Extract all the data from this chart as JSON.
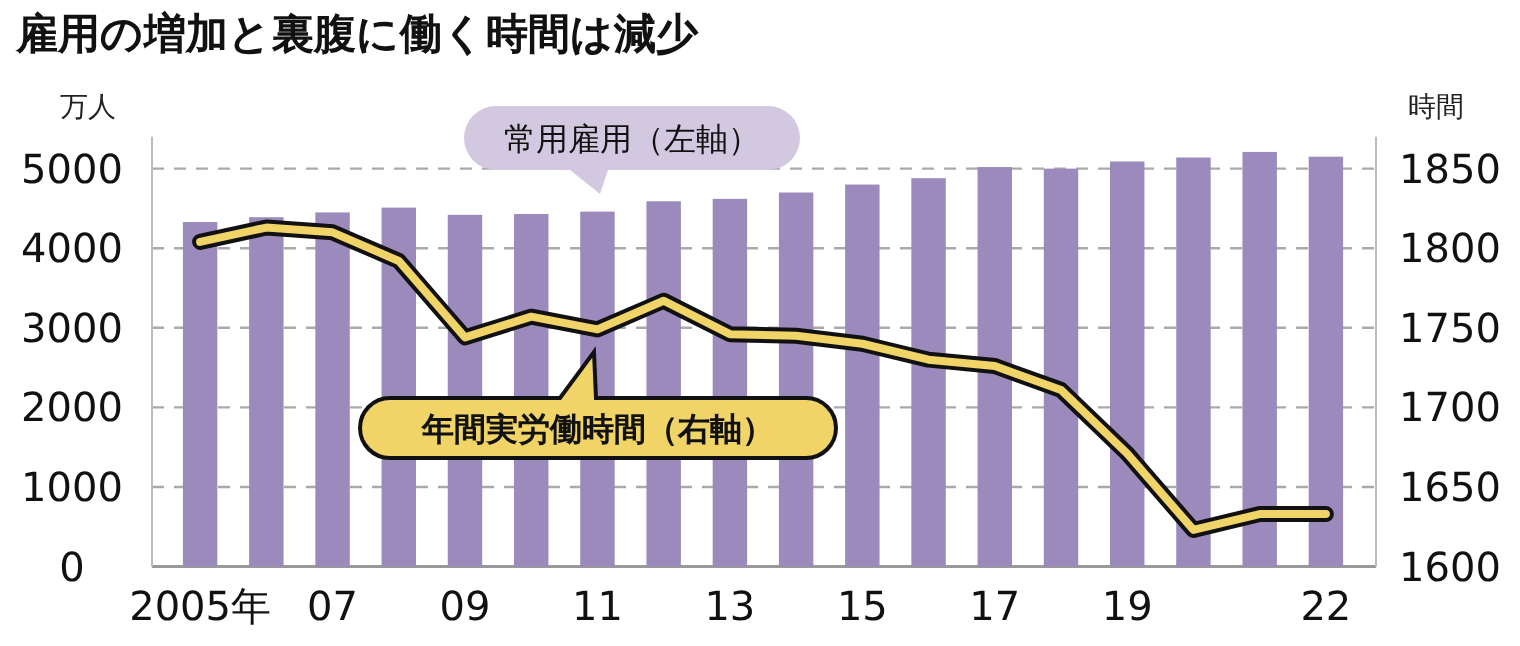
{
  "chart_data": {
    "type": "bar",
    "title": "雇用の増加と裏腹に働く時間は減少",
    "ylabel": "万人",
    "y2label": "時間",
    "categories": [
      "2005年",
      null,
      "07",
      null,
      "09",
      null,
      "11",
      null,
      "13",
      null,
      "15",
      null,
      "17",
      null,
      "19",
      null,
      null,
      "22"
    ],
    "series": [
      {
        "name": "常用雇用（左軸）",
        "color": "#9b8abb",
        "values": [
          4330,
          4390,
          4450,
          4510,
          4420,
          4430,
          4460,
          4590,
          4620,
          4700,
          4800,
          4880,
          5020,
          5000,
          5090,
          5140,
          5210,
          5150
        ]
      },
      {
        "name": "年間実労働時間（右軸）",
        "type": "line",
        "axis": "y2",
        "color": "#f0d468",
        "values": [
          1804,
          1813,
          1810,
          1792,
          1744,
          1757,
          1749,
          1767,
          1746,
          1745,
          1740,
          1730,
          1726,
          1711,
          1671,
          1623,
          1633,
          1633
        ]
      }
    ],
    "ylim": [
      0,
      5400
    ],
    "yticks": [
      0,
      1000,
      2000,
      3000,
      4000,
      5000
    ],
    "y2lim": [
      1600,
      1870
    ],
    "y2ticks": [
      1600,
      1650,
      1700,
      1750,
      1800,
      1850
    ],
    "grid": "y",
    "legend": false
  }
}
